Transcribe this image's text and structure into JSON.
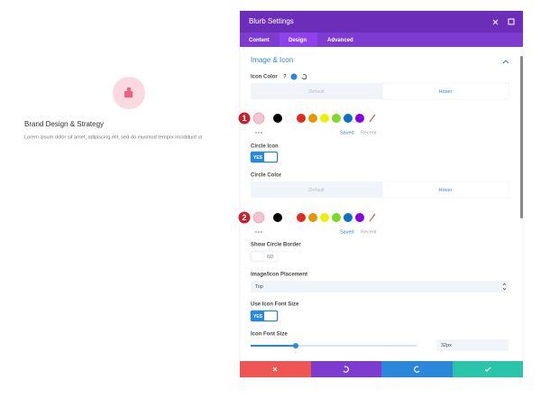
{
  "blurb": {
    "title": "Brand Design & Strategy",
    "body": "Lorem ipsum dolor sit amet, adipiscing elit, sed do eiusmod tempor incididunt ut"
  },
  "modal": {
    "title": "Blurb Settings",
    "tabs": [
      "Content",
      "Design",
      "Advanced"
    ],
    "section": "Image & Icon",
    "icon_color": {
      "label": "Icon Color",
      "help": "?",
      "states": [
        "Default",
        "Hover"
      ],
      "step": "1",
      "saved": "Saved",
      "recent": "Recent"
    },
    "circle_icon": {
      "label": "Circle Icon",
      "toggle": "YES"
    },
    "circle_color": {
      "label": "Circle Color",
      "states": [
        "Default",
        "Hover"
      ],
      "step": "2",
      "saved": "Saved",
      "recent": "Recent"
    },
    "show_circle_border": {
      "label": "Show Circle Border",
      "toggle": "NO"
    },
    "placement": {
      "label": "Image/Icon Placement",
      "value": "Top"
    },
    "use_icon_font_size": {
      "label": "Use Icon Font Size",
      "toggle": "YES"
    },
    "icon_font_size": {
      "label": "Icon Font Size",
      "value": "32px"
    }
  }
}
